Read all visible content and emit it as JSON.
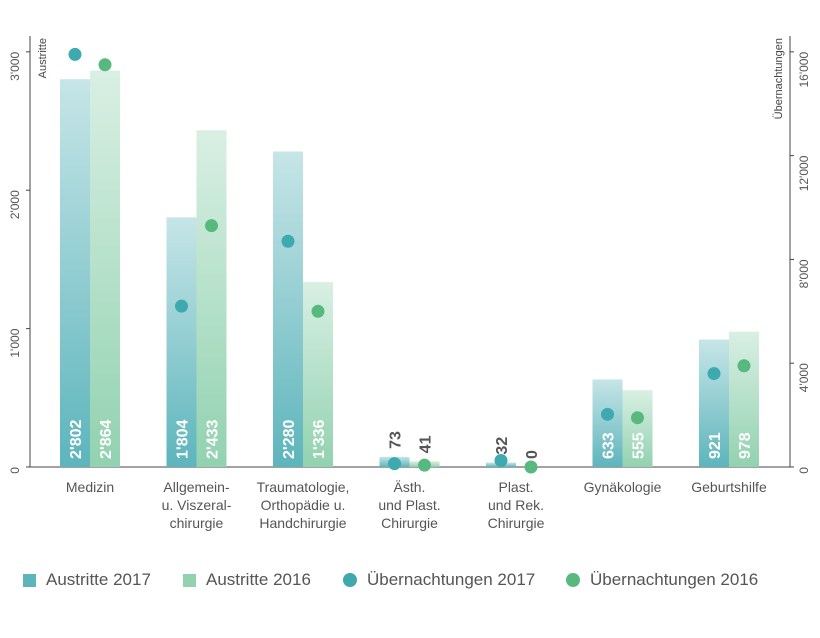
{
  "chart_data": {
    "type": "bar",
    "categories": [
      [
        "Medizin"
      ],
      [
        "Allgemein-",
        "u. Viszeral-",
        "chirurgie"
      ],
      [
        "Traumatologie,",
        "Orthopädie u.",
        "Handchirurgie"
      ],
      [
        "Ästh.",
        "und Plast.",
        "Chirurgie"
      ],
      [
        "Plast.",
        "und Rek.",
        "Chirurgie"
      ],
      [
        "Gynäkologie"
      ],
      [
        "Geburtshilfe"
      ]
    ],
    "left_axis": {
      "label": "Austritte",
      "ylim": [
        0,
        3100
      ],
      "ticks": [
        0,
        1000,
        2000,
        3000
      ],
      "tick_labels": [
        "0",
        "1'000",
        "2'000",
        "3'000"
      ]
    },
    "right_axis": {
      "label": "Übernachtungen",
      "ylim": [
        0,
        16533
      ],
      "ticks": [
        0,
        4000,
        8000,
        12000,
        16000
      ],
      "tick_labels": [
        "0",
        "4'000",
        "8'000",
        "12'000",
        "16'000"
      ]
    },
    "series": [
      {
        "name": "Austritte 2017",
        "kind": "bar",
        "axis": "left",
        "color": "#5db5bc",
        "values": [
          2802,
          1804,
          2280,
          73,
          32,
          633,
          921
        ],
        "labels": [
          "2'802",
          "1'804",
          "2'280",
          "73",
          "32",
          "633",
          "921"
        ]
      },
      {
        "name": "Austritte 2016",
        "kind": "bar",
        "axis": "left",
        "color": "#92d2b0",
        "values": [
          2864,
          2433,
          1336,
          41,
          0,
          555,
          978
        ],
        "labels": [
          "2'864",
          "2'433",
          "1'336",
          "41",
          "0",
          "555",
          "978"
        ]
      },
      {
        "name": "Übernachtungen 2017",
        "kind": "dot",
        "axis": "right",
        "color": "#3ea9ae",
        "values": [
          15900,
          6200,
          8700,
          130,
          250,
          2030,
          3600
        ]
      },
      {
        "name": "Übernachtungen 2016",
        "kind": "dot",
        "axis": "right",
        "color": "#58b97f",
        "values": [
          15500,
          9300,
          6000,
          70,
          0,
          1900,
          3900
        ]
      }
    ]
  }
}
